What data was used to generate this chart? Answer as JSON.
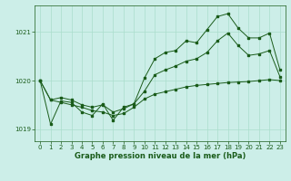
{
  "xlabel": "Graphe pression niveau de la mer (hPa)",
  "bg_color": "#cceee8",
  "grid_color": "#aaddcc",
  "line_color": "#1a5c1a",
  "ylim": [
    1018.75,
    1021.55
  ],
  "xlim": [
    -0.5,
    23.5
  ],
  "yticks": [
    1019,
    1020,
    1021
  ],
  "xticks": [
    0,
    1,
    2,
    3,
    4,
    5,
    6,
    7,
    8,
    9,
    10,
    11,
    12,
    13,
    14,
    15,
    16,
    17,
    18,
    19,
    20,
    21,
    22,
    23
  ],
  "hours": [
    0,
    1,
    2,
    3,
    4,
    5,
    6,
    7,
    8,
    9,
    10,
    11,
    12,
    13,
    14,
    15,
    16,
    17,
    18,
    19,
    20,
    21,
    22,
    23
  ],
  "line1": [
    1020.0,
    1019.6,
    1019.65,
    1019.6,
    1019.5,
    1019.45,
    1019.5,
    1019.35,
    1019.42,
    1019.52,
    1019.78,
    1020.12,
    1020.22,
    1020.3,
    1020.4,
    1020.45,
    1020.58,
    1020.82,
    1020.98,
    1020.72,
    1020.52,
    1020.55,
    1020.62,
    1020.08
  ],
  "line2": [
    1020.0,
    1019.1,
    1019.58,
    1019.55,
    1019.35,
    1019.28,
    1019.52,
    1019.18,
    1019.45,
    1019.52,
    1020.05,
    1020.45,
    1020.58,
    1020.62,
    1020.82,
    1020.78,
    1021.05,
    1021.32,
    1021.38,
    1021.08,
    1020.88,
    1020.88,
    1020.98,
    1020.22
  ],
  "line3": [
    1020.0,
    1019.6,
    1019.55,
    1019.5,
    1019.45,
    1019.38,
    1019.35,
    1019.28,
    1019.32,
    1019.45,
    1019.62,
    1019.72,
    1019.77,
    1019.82,
    1019.87,
    1019.9,
    1019.92,
    1019.94,
    1019.96,
    1019.97,
    1019.98,
    1020.0,
    1020.02,
    1020.0
  ],
  "marker_size": 1.8,
  "linewidth": 0.7,
  "tick_labelsize": 5.0,
  "xlabel_fontsize": 6.0
}
